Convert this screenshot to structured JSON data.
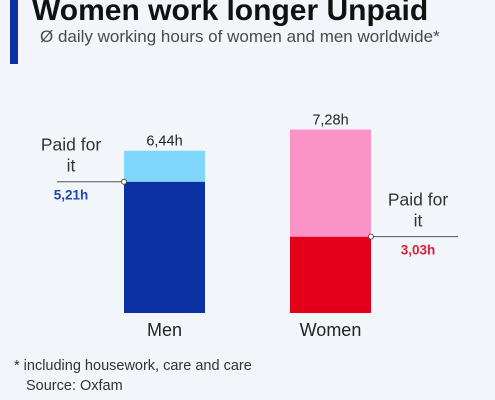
{
  "header": {
    "title": "Women work longer Unpaid",
    "subtitle": "Ø daily working hours of women and men worldwide*"
  },
  "footer": {
    "footnote": "* including housework, care and care",
    "source": "Source: Oxfam"
  },
  "colors": {
    "accent": "#0b31a5",
    "men_paid": "#0b31a5",
    "men_unpaid": "#7fd8fb",
    "women_paid": "#e4001b",
    "women_unpaid": "#fa94c6",
    "men_value_text": "#1f48b0",
    "women_value_text": "#d9203b"
  },
  "chart_data": {
    "type": "bar",
    "stacked": true,
    "categories": [
      "Men",
      "Women"
    ],
    "series": [
      {
        "values": [
          5.21,
          3.03
        ]
      },
      {
        "values": [
          1.23,
          4.25
        ]
      }
    ],
    "total_labels": [
      "6,44h",
      "7,28h"
    ],
    "paid_labels": [
      "5,21h",
      "3,03h"
    ],
    "annotation": "Paid for it",
    "ylim": [
      0,
      8
    ],
    "grid": false
  }
}
